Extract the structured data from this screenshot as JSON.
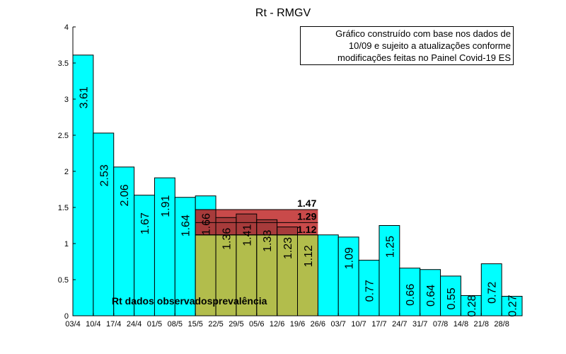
{
  "chart_data": {
    "type": "bar",
    "title": "Rt - RMGV",
    "xlabel": "",
    "ylabel": "",
    "ylim": [
      0,
      4
    ],
    "yticks": [
      "0",
      "0.5",
      "1",
      "1.5",
      "2",
      "2.5",
      "3",
      "3.5",
      "4"
    ],
    "categories": [
      "03/4",
      "10/4",
      "17/4",
      "24/4",
      "01/5",
      "08/5",
      "15/5",
      "22/5",
      "29/5",
      "05/6",
      "12/6",
      "19/6",
      "26/6",
      "03/7",
      "10/7",
      "17/7",
      "24/7",
      "31/7",
      "07/8",
      "14/8",
      "21/8",
      "28/8"
    ],
    "values": [
      3.61,
      2.53,
      2.06,
      1.67,
      1.91,
      1.64,
      1.66,
      1.36,
      1.41,
      1.33,
      1.23,
      1.12,
      1.12,
      1.09,
      0.77,
      1.25,
      0.66,
      0.64,
      0.55,
      0.28,
      0.72,
      0.27
    ],
    "value_labels": [
      "3.61",
      "2.53",
      "2.06",
      "1.67",
      "1.91",
      "1.64",
      "1.66",
      "1.36",
      "1.41",
      "1.33",
      "1.23",
      "1.12",
      "",
      "1.09",
      "0.77",
      "1.25",
      "0.66",
      "0.64",
      "0.55",
      "0.28",
      "0.72",
      "0.27"
    ],
    "prevalence_band": {
      "label": "Rt dados observadosprevalência",
      "from_category": "15/5",
      "to_category": "19/6",
      "upper": 1.47,
      "mid": 1.29,
      "lower": 1.12,
      "upper_label": "1.47",
      "mid_label": "1.29",
      "lower_label": "1.12",
      "fill_color": "#b2bd4c",
      "band_color": "#c94a4a"
    },
    "bar_color": "#00ffff",
    "grid": false,
    "annotation_lines": [
      "Gráfico construído com base nos dados de",
      "10/09 e sujeito a atualizações conforme",
      "modificações feitas no Painel Covid-19 ES"
    ]
  }
}
